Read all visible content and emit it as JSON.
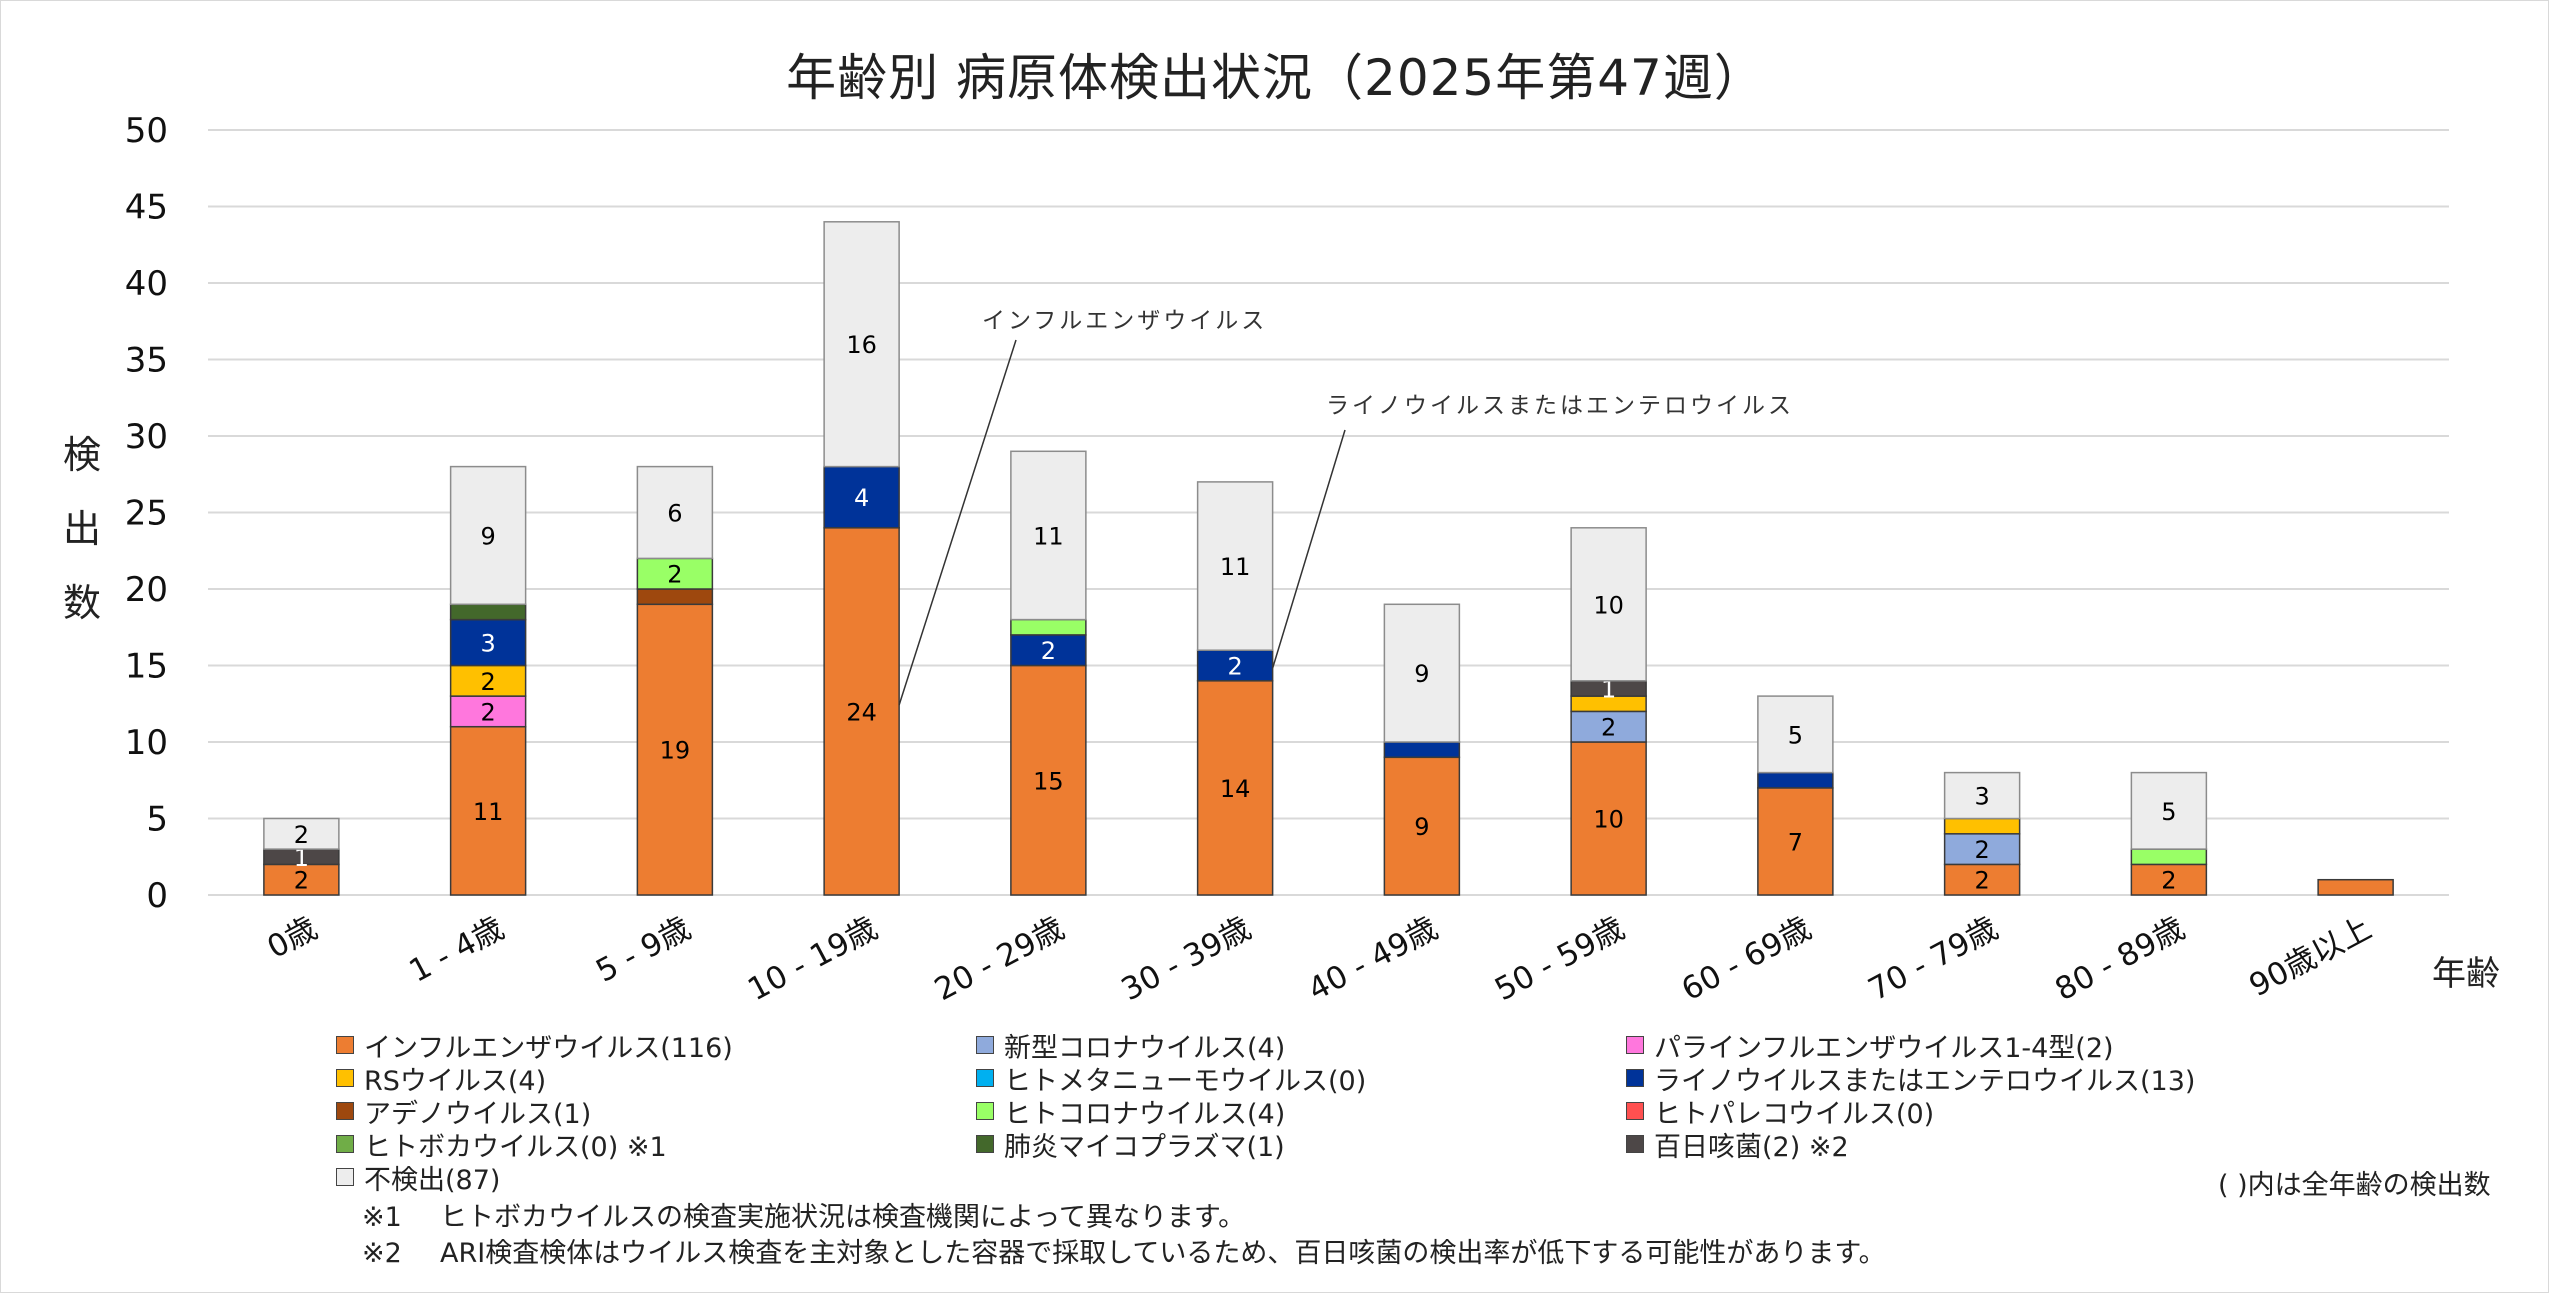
{
  "chart_data": {
    "type": "bar",
    "stacked": true,
    "title": "年齢別 病原体検出状況（2025年第47週）",
    "xlabel": "年齢",
    "ylabel": "検出数",
    "ylim": [
      0,
      50
    ],
    "yticks": [
      0,
      5,
      10,
      15,
      20,
      25,
      30,
      35,
      40,
      45,
      50
    ],
    "grid": true,
    "legend_position": "bottom",
    "categories": [
      "0歳",
      "1 - 4歳",
      "5 - 9歳",
      "10 - 19歳",
      "20 - 29歳",
      "30 - 39歳",
      "40 - 49歳",
      "50 - 59歳",
      "60 - 69歳",
      "70 - 79歳",
      "80 - 89歳",
      "90歳以上"
    ],
    "series": [
      {
        "name": "インフルエンザウイルス",
        "total": 116,
        "color": "#ED7D31",
        "label_color": "#000000",
        "values": [
          2,
          11,
          19,
          24,
          15,
          14,
          9,
          10,
          7,
          2,
          2,
          1
        ],
        "labels": [
          true,
          true,
          true,
          true,
          true,
          true,
          true,
          true,
          true,
          true,
          true,
          false
        ]
      },
      {
        "name": "新型コロナウイルス",
        "total": 4,
        "color": "#8FAADC",
        "label_color": "#000000",
        "values": [
          0,
          0,
          0,
          0,
          0,
          0,
          0,
          2,
          0,
          2,
          0,
          0
        ],
        "labels": [
          false,
          false,
          false,
          false,
          false,
          false,
          false,
          true,
          false,
          true,
          false,
          false
        ]
      },
      {
        "name": "パラインフルエンザウイルス1-4型",
        "total": 2,
        "color": "#FF77DD",
        "label_color": "#000000",
        "values": [
          0,
          2,
          0,
          0,
          0,
          0,
          0,
          0,
          0,
          0,
          0,
          0
        ],
        "labels": [
          false,
          true,
          false,
          false,
          false,
          false,
          false,
          false,
          false,
          false,
          false,
          false
        ]
      },
      {
        "name": "RSウイルス",
        "total": 4,
        "color": "#FFC000",
        "label_color": "#000000",
        "values": [
          0,
          2,
          0,
          0,
          0,
          0,
          0,
          1,
          0,
          1,
          0,
          0
        ],
        "labels": [
          false,
          true,
          false,
          false,
          false,
          false,
          false,
          false,
          false,
          false,
          false,
          false
        ]
      },
      {
        "name": "ヒトメタニューモウイルス",
        "total": 0,
        "color": "#00B0F0",
        "label_color": "#000000",
        "values": [
          0,
          0,
          0,
          0,
          0,
          0,
          0,
          0,
          0,
          0,
          0,
          0
        ],
        "labels": [
          false,
          false,
          false,
          false,
          false,
          false,
          false,
          false,
          false,
          false,
          false,
          false
        ]
      },
      {
        "name": "ライノウイルスまたはエンテロウイルス",
        "total": 13,
        "color": "#003399",
        "label_color": "#FFFFFF",
        "values": [
          0,
          3,
          0,
          4,
          2,
          2,
          1,
          0,
          1,
          0,
          0,
          0
        ],
        "labels": [
          false,
          true,
          false,
          true,
          true,
          true,
          false,
          false,
          false,
          false,
          false,
          false
        ]
      },
      {
        "name": "アデノウイルス",
        "total": 1,
        "color": "#9E480E",
        "label_color": "#000000",
        "values": [
          0,
          0,
          1,
          0,
          0,
          0,
          0,
          0,
          0,
          0,
          0,
          0
        ],
        "labels": [
          false,
          false,
          false,
          false,
          false,
          false,
          false,
          false,
          false,
          false,
          false,
          false
        ]
      },
      {
        "name": "ヒトコロナウイルス",
        "total": 4,
        "color": "#99FF66",
        "label_color": "#000000",
        "values": [
          0,
          0,
          2,
          0,
          1,
          0,
          0,
          0,
          0,
          0,
          1,
          0
        ],
        "labels": [
          false,
          false,
          true,
          false,
          false,
          false,
          false,
          false,
          false,
          false,
          false,
          false
        ]
      },
      {
        "name": "ヒトパレコウイルス",
        "total": 0,
        "color": "#FF5050",
        "label_color": "#000000",
        "values": [
          0,
          0,
          0,
          0,
          0,
          0,
          0,
          0,
          0,
          0,
          0,
          0
        ],
        "labels": [
          false,
          false,
          false,
          false,
          false,
          false,
          false,
          false,
          false,
          false,
          false,
          false
        ]
      },
      {
        "name": "ヒトボカウイルス",
        "total": 0,
        "note": "※1",
        "color": "#70AD47",
        "label_color": "#000000",
        "values": [
          0,
          0,
          0,
          0,
          0,
          0,
          0,
          0,
          0,
          0,
          0,
          0
        ],
        "labels": [
          false,
          false,
          false,
          false,
          false,
          false,
          false,
          false,
          false,
          false,
          false,
          false
        ]
      },
      {
        "name": "肺炎マイコプラズマ",
        "total": 1,
        "color": "#43682B",
        "label_color": "#FFFFFF",
        "values": [
          0,
          1,
          0,
          0,
          0,
          0,
          0,
          0,
          0,
          0,
          0,
          0
        ],
        "labels": [
          false,
          false,
          false,
          false,
          false,
          false,
          false,
          false,
          false,
          false,
          false,
          false
        ]
      },
      {
        "name": "百日咳菌",
        "total": 2,
        "note": "※2",
        "color": "#4D4747",
        "label_color": "#FFFFFF",
        "values": [
          1,
          0,
          0,
          0,
          0,
          0,
          0,
          1,
          0,
          0,
          0,
          0
        ],
        "labels": [
          true,
          false,
          false,
          false,
          false,
          false,
          false,
          true,
          false,
          false,
          false,
          false
        ]
      },
      {
        "name": "不検出",
        "total": 87,
        "color": "#EDEDED",
        "label_color": "#000000",
        "values": [
          2,
          9,
          6,
          16,
          11,
          11,
          9,
          10,
          5,
          3,
          5,
          0
        ],
        "labels": [
          true,
          true,
          true,
          true,
          true,
          true,
          true,
          true,
          true,
          true,
          true,
          false
        ]
      }
    ],
    "annotations": [
      {
        "text": "インフルエンザウイルス",
        "series": "インフルエンザウイルス",
        "category": "10 - 19歳"
      },
      {
        "text": "ライノウイルスまたはエンテロウイルス",
        "series": "ライノウイルスまたはエンテロウイルス",
        "category": "30 - 39歳"
      }
    ]
  },
  "legend": {
    "items": [
      "インフルエンザウイルス(116)",
      "新型コロナウイルス(4)",
      "パラインフルエンザウイルス1-4型(2)",
      "RSウイルス(4)",
      "ヒトメタニューモウイルス(0)",
      "ライノウイルスまたはエンテロウイルス(13)",
      "アデノウイルス(1)",
      "ヒトコロナウイルス(4)",
      "ヒトパレコウイルス(0)",
      "ヒトボカウイルス(0) ※1",
      "肺炎マイコプラズマ(1)",
      "百日咳菌(2) ※2",
      "不検出(87)"
    ],
    "colors": [
      "#ED7D31",
      "#8FAADC",
      "#FF77DD",
      "#FFC000",
      "#00B0F0",
      "#003399",
      "#9E480E",
      "#99FF66",
      "#FF5050",
      "#70AD47",
      "#43682B",
      "#4D4747",
      "#EDEDED"
    ],
    "note": "( )内は全年齢の検出数"
  },
  "footnotes": [
    {
      "mark": "※1",
      "text": "ヒトボカウイルスの検査実施状況は検査機関によって異なります。"
    },
    {
      "mark": "※2",
      "text": "ARI検査検体はウイルス検査を主対象とした容器で採取しているため、百日咳菌の検出率が低下する可能性があります。"
    }
  ]
}
